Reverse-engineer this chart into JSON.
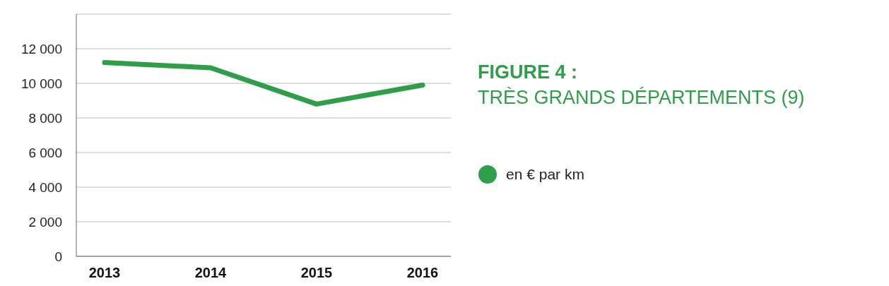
{
  "chart_data": {
    "type": "line",
    "title": "FIGURE 4 :",
    "subtitle": "TRÈS GRANDS DÉPARTEMENTS (9)",
    "categories": [
      "2013",
      "2014",
      "2015",
      "2016"
    ],
    "series": [
      {
        "name": "en € par km",
        "color": "#2e9e48",
        "values": [
          11200,
          10900,
          8800,
          9900
        ]
      }
    ],
    "ylim": [
      0,
      14000
    ],
    "yticks": [
      0,
      {
        "value": 2000,
        "label": "2 000"
      },
      {
        "value": 4000,
        "label": "4 000"
      },
      {
        "value": 6000,
        "label": "6 000"
      },
      {
        "value": 8000,
        "label": "8 000"
      },
      {
        "value": 10000,
        "label": "10 000"
      },
      {
        "value": 12000,
        "label": "12 000"
      },
      {
        "value": 14000,
        "label": null
      }
    ],
    "grid": "y",
    "legend": "right",
    "marker": "none",
    "line_style": "solid"
  }
}
